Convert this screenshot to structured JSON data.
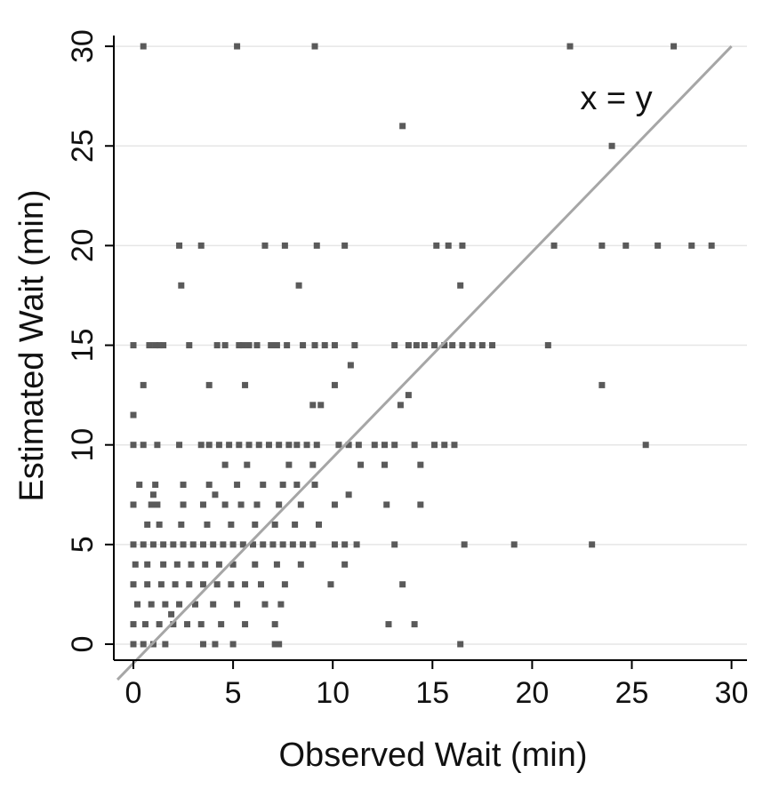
{
  "colors": {
    "background": "#ffffff",
    "gridline": "#e6e6e6",
    "axis": "#000000",
    "points": "#5a5a5a",
    "reference_line": "#a6a6a6"
  },
  "chart_data": {
    "type": "scatter",
    "title": "",
    "xlabel": "Observed Wait (min)",
    "ylabel": "Estimated Wait (min)",
    "xlim": [
      -0.5,
      30.5
    ],
    "ylim": [
      -0.5,
      30.5
    ],
    "xticks": [
      0,
      5,
      10,
      15,
      20,
      25,
      30
    ],
    "yticks": [
      0,
      5,
      10,
      15,
      20,
      25,
      30
    ],
    "grid": "horizontal",
    "reference_line": {
      "label": "x = y",
      "from": [
        -0.8,
        -0.8
      ],
      "to": [
        30,
        30
      ]
    },
    "points": [
      [
        0.5,
        30
      ],
      [
        5.2,
        30
      ],
      [
        9.1,
        30
      ],
      [
        21.9,
        30
      ],
      [
        27.1,
        30
      ],
      [
        13.5,
        26
      ],
      [
        24,
        25
      ],
      [
        2.3,
        20
      ],
      [
        3.4,
        20
      ],
      [
        6.6,
        20
      ],
      [
        7.6,
        20
      ],
      [
        9.2,
        20
      ],
      [
        10.6,
        20
      ],
      [
        15.2,
        20
      ],
      [
        15.8,
        20
      ],
      [
        16.5,
        20
      ],
      [
        21.1,
        20
      ],
      [
        23.5,
        20
      ],
      [
        24.7,
        20
      ],
      [
        26.3,
        20
      ],
      [
        28,
        20
      ],
      [
        29,
        20
      ],
      [
        2.4,
        18
      ],
      [
        8.3,
        18
      ],
      [
        16.4,
        18
      ],
      [
        0,
        15
      ],
      [
        0.8,
        15
      ],
      [
        1.1,
        15
      ],
      [
        1.3,
        15
      ],
      [
        1.5,
        15
      ],
      [
        2.8,
        15
      ],
      [
        4.2,
        15
      ],
      [
        4.6,
        15
      ],
      [
        5.3,
        15
      ],
      [
        5.5,
        15
      ],
      [
        5.8,
        15
      ],
      [
        6.2,
        15
      ],
      [
        6.9,
        15
      ],
      [
        7.2,
        15
      ],
      [
        7.7,
        15
      ],
      [
        8.5,
        15
      ],
      [
        9.1,
        15
      ],
      [
        9.6,
        15
      ],
      [
        10.1,
        15
      ],
      [
        11.1,
        15
      ],
      [
        13.1,
        15
      ],
      [
        13.8,
        15
      ],
      [
        14.2,
        15
      ],
      [
        14.6,
        15
      ],
      [
        15.1,
        15
      ],
      [
        15.6,
        15
      ],
      [
        16.0,
        15
      ],
      [
        16.5,
        15
      ],
      [
        17.0,
        15
      ],
      [
        17.5,
        15
      ],
      [
        18,
        15
      ],
      [
        20.8,
        15
      ],
      [
        10.9,
        14
      ],
      [
        0.5,
        13
      ],
      [
        3.8,
        13
      ],
      [
        5.6,
        13
      ],
      [
        10.1,
        13
      ],
      [
        23.5,
        13
      ],
      [
        13.8,
        12.5
      ],
      [
        9.0,
        12
      ],
      [
        9.4,
        12
      ],
      [
        13.4,
        12
      ],
      [
        0,
        11.5
      ],
      [
        0,
        10
      ],
      [
        0.5,
        10
      ],
      [
        1.2,
        10
      ],
      [
        2.3,
        10
      ],
      [
        3.4,
        10
      ],
      [
        3.8,
        10
      ],
      [
        4.3,
        10
      ],
      [
        4.8,
        10
      ],
      [
        5.3,
        10
      ],
      [
        5.8,
        10
      ],
      [
        6.3,
        10
      ],
      [
        6.8,
        10
      ],
      [
        7.3,
        10
      ],
      [
        7.8,
        10
      ],
      [
        8.2,
        10
      ],
      [
        8.7,
        10
      ],
      [
        9.2,
        10
      ],
      [
        10.3,
        10
      ],
      [
        10.8,
        10
      ],
      [
        11.3,
        10
      ],
      [
        12.1,
        10
      ],
      [
        12.6,
        10
      ],
      [
        13.1,
        10
      ],
      [
        14.1,
        10
      ],
      [
        15.1,
        10
      ],
      [
        15.6,
        10
      ],
      [
        16.1,
        10
      ],
      [
        25.7,
        10
      ],
      [
        4.6,
        9
      ],
      [
        5.7,
        9
      ],
      [
        7.8,
        9
      ],
      [
        11.4,
        9
      ],
      [
        12.6,
        9
      ],
      [
        14.4,
        9
      ],
      [
        9.0,
        9
      ],
      [
        0.3,
        8
      ],
      [
        1.1,
        8
      ],
      [
        2.5,
        8
      ],
      [
        3.8,
        8
      ],
      [
        5.2,
        8
      ],
      [
        6.5,
        8
      ],
      [
        7.5,
        8
      ],
      [
        8.2,
        8
      ],
      [
        9.1,
        8
      ],
      [
        1.0,
        7.5
      ],
      [
        4.1,
        7.5
      ],
      [
        10.8,
        7.5
      ],
      [
        0,
        7
      ],
      [
        0.9,
        7
      ],
      [
        1.2,
        7
      ],
      [
        2.5,
        7
      ],
      [
        3.5,
        7
      ],
      [
        4.6,
        7
      ],
      [
        5.4,
        7
      ],
      [
        6.2,
        7
      ],
      [
        7.3,
        7
      ],
      [
        8.4,
        7
      ],
      [
        10.1,
        7
      ],
      [
        12.7,
        7
      ],
      [
        14.4,
        7
      ],
      [
        0.7,
        6
      ],
      [
        1.3,
        6
      ],
      [
        2.4,
        6
      ],
      [
        3.7,
        6
      ],
      [
        4.9,
        6
      ],
      [
        6.1,
        6
      ],
      [
        7.1,
        6
      ],
      [
        8.1,
        6
      ],
      [
        9.3,
        6
      ],
      [
        0,
        5
      ],
      [
        0.5,
        5
      ],
      [
        1.0,
        5
      ],
      [
        1.5,
        5
      ],
      [
        2.0,
        5
      ],
      [
        2.5,
        5
      ],
      [
        3.0,
        5
      ],
      [
        3.5,
        5
      ],
      [
        4.0,
        5
      ],
      [
        4.5,
        5
      ],
      [
        5.0,
        5
      ],
      [
        5.5,
        5
      ],
      [
        6.0,
        5
      ],
      [
        6.5,
        5
      ],
      [
        7.0,
        5
      ],
      [
        7.5,
        5
      ],
      [
        8.0,
        5
      ],
      [
        8.5,
        5
      ],
      [
        9.0,
        5
      ],
      [
        10.1,
        5
      ],
      [
        10.6,
        5
      ],
      [
        11.2,
        5
      ],
      [
        13.1,
        5
      ],
      [
        16.6,
        5
      ],
      [
        19.1,
        5
      ],
      [
        23.0,
        5
      ],
      [
        0.1,
        4
      ],
      [
        0.7,
        4
      ],
      [
        1.5,
        4
      ],
      [
        2.2,
        4
      ],
      [
        2.9,
        4
      ],
      [
        3.6,
        4
      ],
      [
        4.3,
        4
      ],
      [
        5.0,
        4
      ],
      [
        6.1,
        4
      ],
      [
        7.2,
        4
      ],
      [
        8.4,
        4
      ],
      [
        10.6,
        4
      ],
      [
        0,
        3
      ],
      [
        0.7,
        3
      ],
      [
        1.4,
        3
      ],
      [
        2.1,
        3
      ],
      [
        2.8,
        3
      ],
      [
        3.5,
        3
      ],
      [
        4.2,
        3
      ],
      [
        4.9,
        3
      ],
      [
        5.6,
        3
      ],
      [
        6.4,
        3
      ],
      [
        7.6,
        3
      ],
      [
        9.9,
        3
      ],
      [
        13.5,
        3
      ],
      [
        0.2,
        2
      ],
      [
        0.9,
        2
      ],
      [
        1.6,
        2
      ],
      [
        2.3,
        2
      ],
      [
        3.1,
        2
      ],
      [
        4.0,
        2
      ],
      [
        5.2,
        2
      ],
      [
        6.6,
        2
      ],
      [
        7.4,
        2
      ],
      [
        1.9,
        1.5
      ],
      [
        0,
        1
      ],
      [
        0.6,
        1
      ],
      [
        1.3,
        1
      ],
      [
        2.0,
        1
      ],
      [
        2.7,
        1
      ],
      [
        3.4,
        1
      ],
      [
        4.4,
        1
      ],
      [
        5.6,
        1
      ],
      [
        7.1,
        1
      ],
      [
        12.8,
        1
      ],
      [
        14.1,
        1
      ],
      [
        0,
        0
      ],
      [
        0.5,
        0
      ],
      [
        1.0,
        0
      ],
      [
        1.6,
        0
      ],
      [
        3.5,
        0
      ],
      [
        4.1,
        0
      ],
      [
        5.0,
        0
      ],
      [
        7.1,
        0
      ],
      [
        7.3,
        0
      ],
      [
        16.4,
        0
      ]
    ]
  }
}
